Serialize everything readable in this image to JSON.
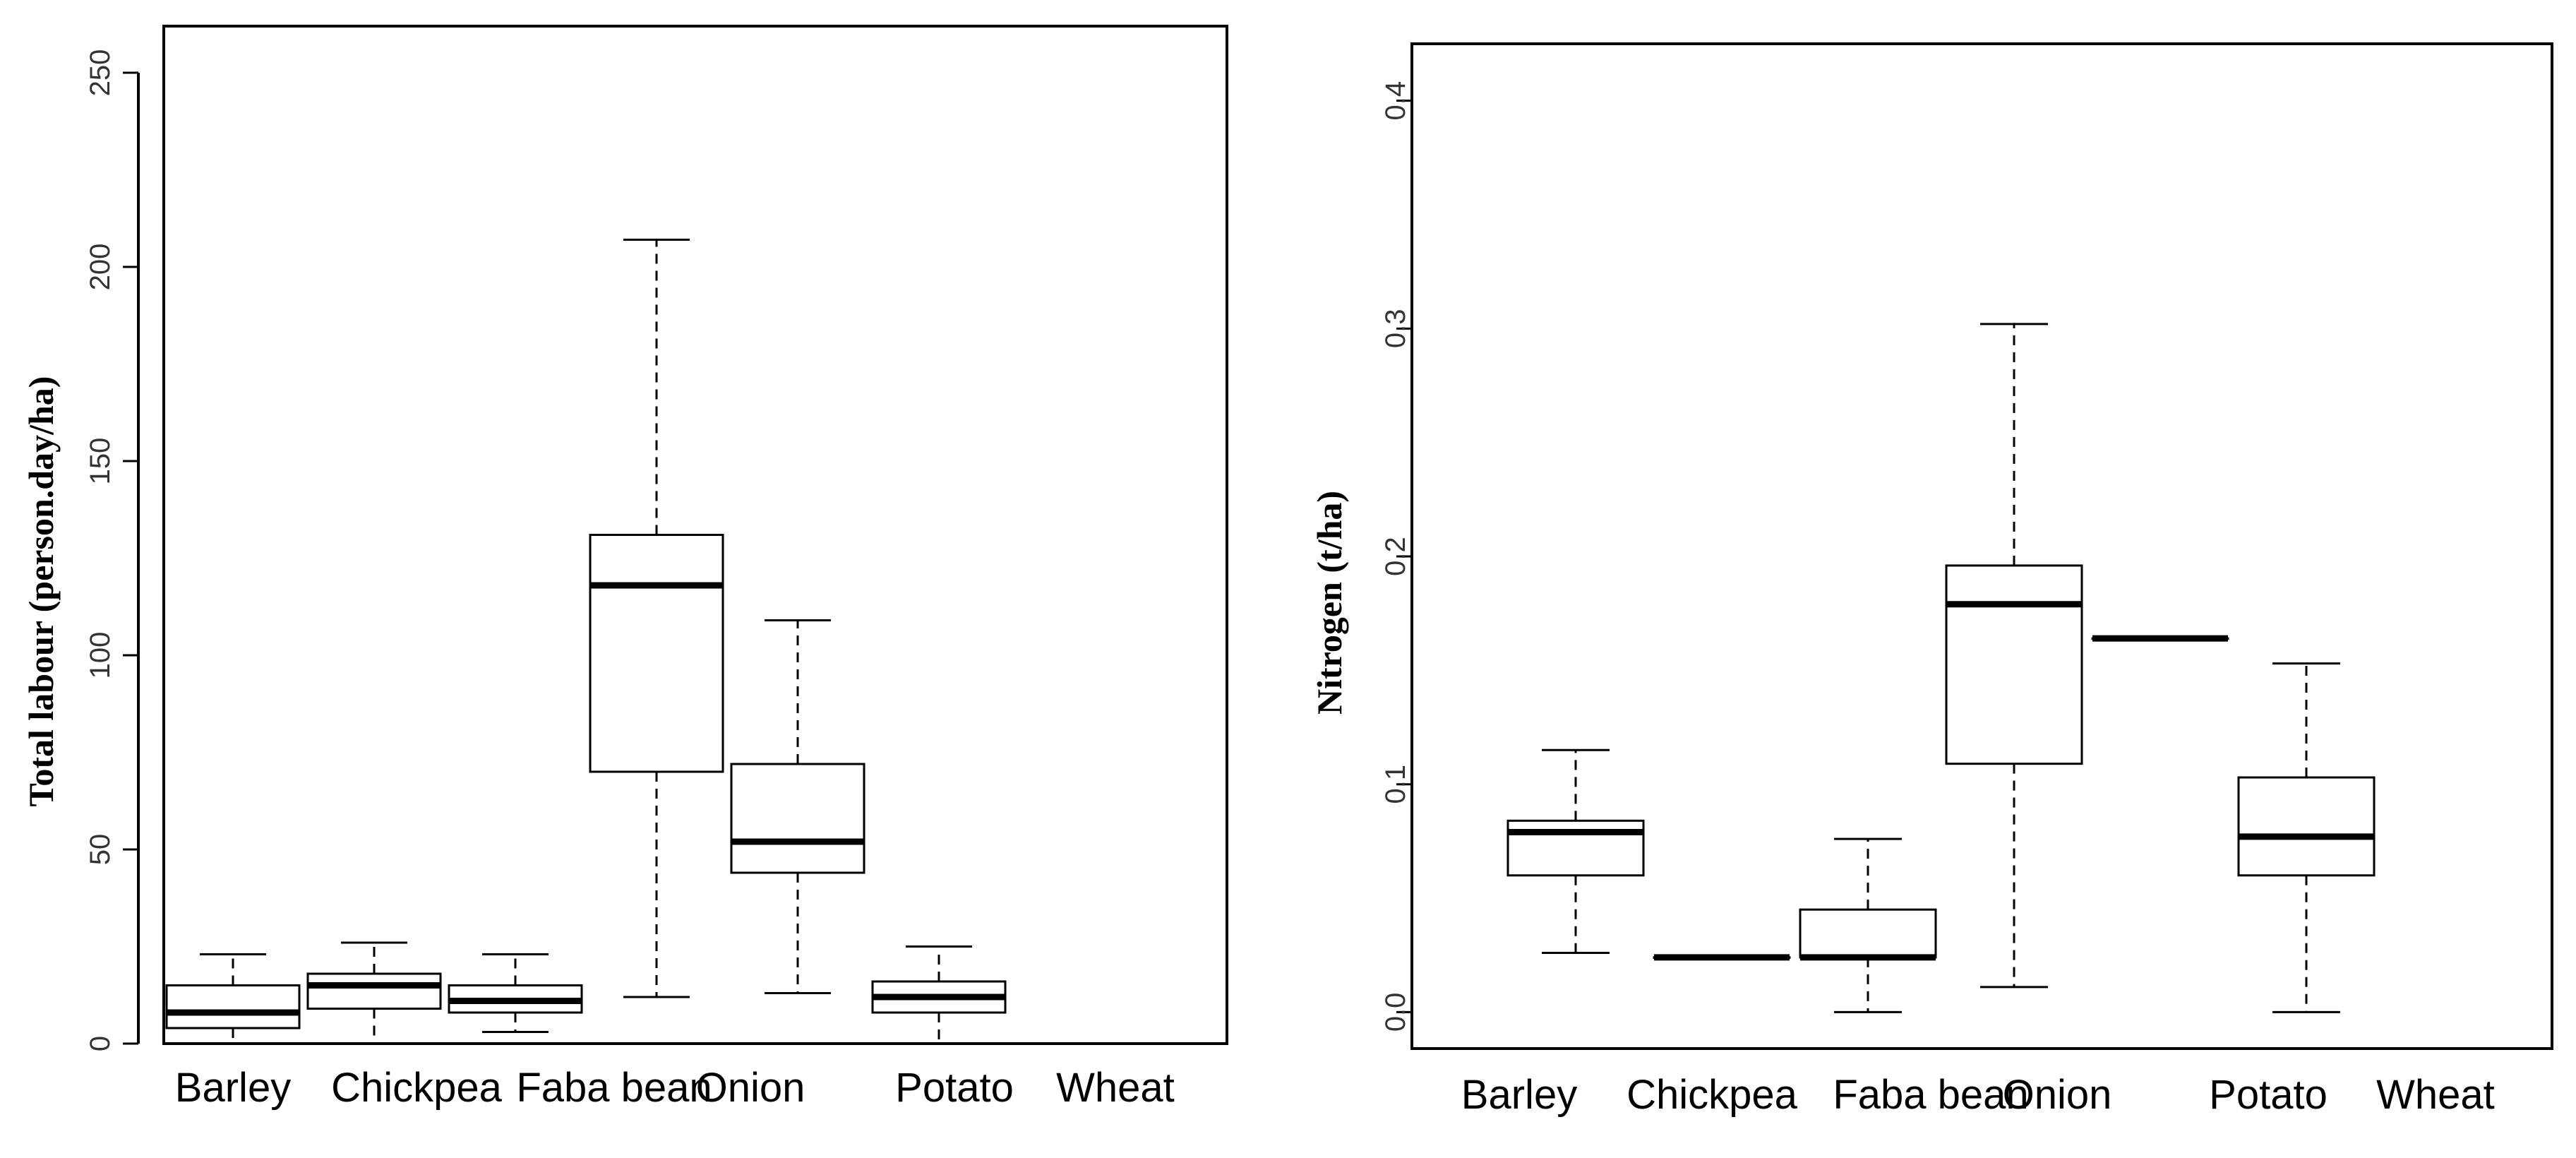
{
  "chart_data": [
    {
      "type": "box",
      "ylabel": "Total labour  (person.day/ha)",
      "ylim": [
        0,
        262
      ],
      "yticks": [
        0,
        50,
        100,
        150,
        200,
        250
      ],
      "yticks_label": [
        "0",
        "50",
        "100",
        "150",
        "200",
        "250"
      ],
      "categories": [
        "Barley",
        "Chickpea",
        "Faba bean",
        "Onion",
        "Potato",
        "Wheat"
      ],
      "boxes": [
        {
          "name": "Barley",
          "min": 0,
          "q1": 4,
          "median": 8,
          "q3": 15,
          "max": 23
        },
        {
          "name": "Chickpea",
          "min": 0,
          "q1": 9,
          "median": 15,
          "q3": 18,
          "max": 26
        },
        {
          "name": "Faba bean",
          "min": 3,
          "q1": 8,
          "median": 11,
          "q3": 15,
          "max": 23
        },
        {
          "name": "Onion",
          "min": 12,
          "q1": 70,
          "median": 118,
          "q3": 131,
          "max": 207
        },
        {
          "name": "Potato",
          "min": 13,
          "q1": 44,
          "median": 52,
          "q3": 72,
          "max": 109
        },
        {
          "name": "Wheat",
          "min": 0,
          "q1": 8,
          "median": 12,
          "q3": 16,
          "max": 25
        }
      ]
    },
    {
      "type": "box",
      "ylabel": "Nitrogen (t/ha)",
      "ylim": [
        -0.016,
        0.425
      ],
      "yticks": [
        0,
        0.1,
        0.2,
        0.3,
        0.4
      ],
      "yticks_label": [
        "0.0",
        "0.1",
        "0.2",
        "0.3",
        "0.4"
      ],
      "categories": [
        "Barley",
        "Chickpea",
        "Faba bean",
        "Onion",
        "Potato",
        "Wheat"
      ],
      "boxes": [
        {
          "name": "Barley",
          "min": 0.026,
          "q1": 0.06,
          "median": 0.079,
          "q3": 0.084,
          "max": 0.115
        },
        {
          "name": "Chickpea",
          "min": 0.024,
          "q1": 0.024,
          "median": 0.024,
          "q3": 0.024,
          "max": 0.024
        },
        {
          "name": "Faba bean",
          "min": 0,
          "q1": 0.024,
          "median": 0.024,
          "q3": 0.045,
          "max": 0.076
        },
        {
          "name": "Onion",
          "min": 0.011,
          "q1": 0.109,
          "median": 0.179,
          "q3": 0.196,
          "max": 0.302
        },
        {
          "name": "Potato",
          "min": 0.164,
          "q1": 0.164,
          "median": 0.164,
          "q3": 0.164,
          "max": 0.164
        },
        {
          "name": "Wheat",
          "min": 0,
          "q1": 0.06,
          "median": 0.077,
          "q3": 0.103,
          "max": 0.153
        }
      ]
    }
  ]
}
